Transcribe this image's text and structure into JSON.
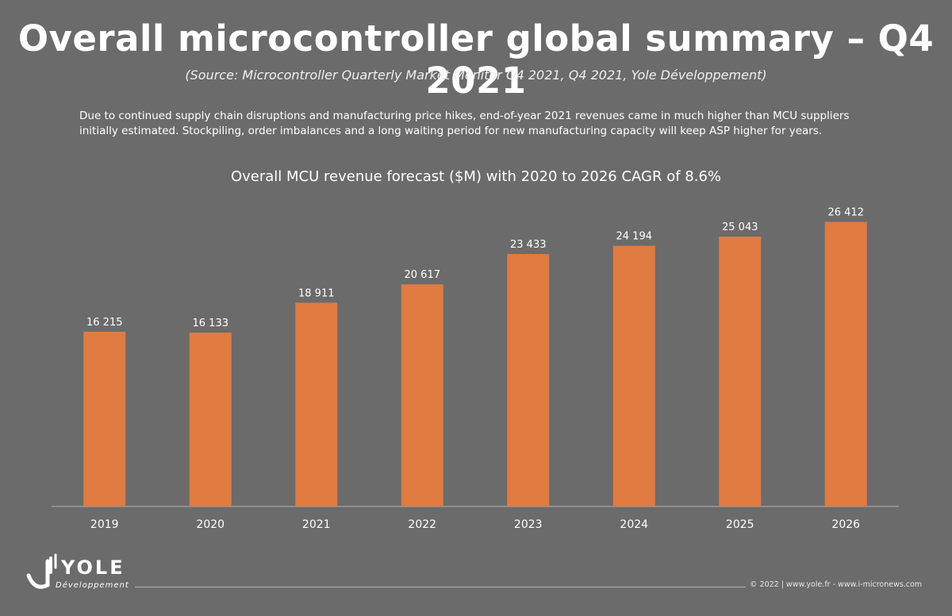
{
  "header": {
    "title": "Overall microcontroller global summary – Q4 2021",
    "source": "(Source: Microcontroller Quarterly Market Monitor Q4 2021, Q4 2021, Yole Développement)",
    "description": "Due to continued supply chain disruptions and manufacturing price hikes, end-of-year 2021 revenues came in much higher than MCU suppliers initially estimated. Stockpiling, order imbalances and a long waiting period for new manufacturing capacity will keep ASP higher for years."
  },
  "chart_data": {
    "type": "bar",
    "title": "Overall MCU revenue forecast ($M) with 2020 to 2026 CAGR of 8.6%",
    "categories": [
      "2019",
      "2020",
      "2021",
      "2022",
      "2023",
      "2024",
      "2025",
      "2026"
    ],
    "values": [
      16215,
      16133,
      18911,
      20617,
      23433,
      24194,
      25043,
      26412
    ],
    "value_labels": [
      "16 215",
      "16 133",
      "18 911",
      "20 617",
      "23 433",
      "24 194",
      "25 043",
      "26 412"
    ],
    "ylim": [
      0,
      28000
    ],
    "bar_color": "#e07b42",
    "axis_color": "#b0b0b0",
    "grid": false
  },
  "logo": {
    "name": "YOLE",
    "sub": "Développement"
  },
  "footer": {
    "text": "© 2022 | www.yole.fr - www.i-micronews.com"
  }
}
